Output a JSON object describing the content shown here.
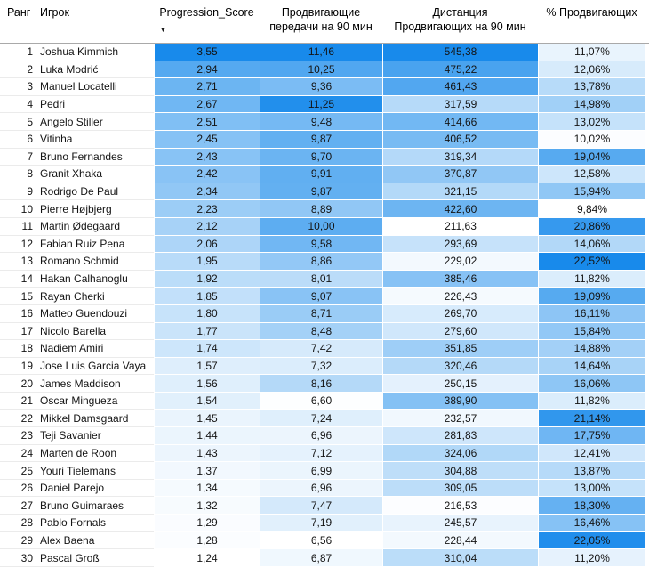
{
  "table": {
    "header": {
      "rank_label": "Ранг",
      "player_label": "Игрок",
      "score_label": "Progression_Score",
      "passes_label_line1": "Продвигающие",
      "passes_label_line2": "передачи на 90 мин",
      "distance_label_line1": "Дистанция",
      "distance_label_line2": "Продвигающих на 90 мин",
      "pct_label": "% Продвигающих",
      "sort_icon": "▼",
      "sorted_column": "Progression_Score",
      "sort_order": "desc"
    },
    "heat_color_min": "#FFFFFF",
    "heat_color_max": "#188AEB",
    "rows": [
      {
        "rank": "1",
        "player": "Joshua Kimmich",
        "score": "3,55",
        "passes": "11,46",
        "distance": "545,38",
        "pct": "11,07%"
      },
      {
        "rank": "2",
        "player": "Luka Modrić",
        "score": "2,94",
        "passes": "10,25",
        "distance": "475,22",
        "pct": "12,06%"
      },
      {
        "rank": "3",
        "player": "Manuel Locatelli",
        "score": "2,71",
        "passes": "9,36",
        "distance": "461,43",
        "pct": "13,78%"
      },
      {
        "rank": "4",
        "player": "Pedri",
        "score": "2,67",
        "passes": "11,25",
        "distance": "317,59",
        "pct": "14,98%"
      },
      {
        "rank": "5",
        "player": "Angelo Stiller",
        "score": "2,51",
        "passes": "9,48",
        "distance": "414,66",
        "pct": "13,02%"
      },
      {
        "rank": "6",
        "player": "Vitinha",
        "score": "2,45",
        "passes": "9,87",
        "distance": "406,52",
        "pct": "10,02%"
      },
      {
        "rank": "7",
        "player": "Bruno Fernandes",
        "score": "2,43",
        "passes": "9,70",
        "distance": "319,34",
        "pct": "19,04%"
      },
      {
        "rank": "8",
        "player": "Granit Xhaka",
        "score": "2,42",
        "passes": "9,91",
        "distance": "370,87",
        "pct": "12,58%"
      },
      {
        "rank": "9",
        "player": "Rodrigo De Paul",
        "score": "2,34",
        "passes": "9,87",
        "distance": "321,15",
        "pct": "15,94%"
      },
      {
        "rank": "10",
        "player": "Pierre Højbjerg",
        "score": "2,23",
        "passes": "8,89",
        "distance": "422,60",
        "pct": "9,84%"
      },
      {
        "rank": "11",
        "player": "Martin Ødegaard",
        "score": "2,12",
        "passes": "10,00",
        "distance": "211,63",
        "pct": "20,86%"
      },
      {
        "rank": "12",
        "player": "Fabian Ruiz Pena",
        "score": "2,06",
        "passes": "9,58",
        "distance": "293,69",
        "pct": "14,06%"
      },
      {
        "rank": "13",
        "player": "Romano Schmid",
        "score": "1,95",
        "passes": "8,86",
        "distance": "229,02",
        "pct": "22,52%"
      },
      {
        "rank": "14",
        "player": "Hakan Calhanoglu",
        "score": "1,92",
        "passes": "8,01",
        "distance": "385,46",
        "pct": "11,82%"
      },
      {
        "rank": "15",
        "player": "Rayan Cherki",
        "score": "1,85",
        "passes": "9,07",
        "distance": "226,43",
        "pct": "19,09%"
      },
      {
        "rank": "16",
        "player": "Matteo Guendouzi",
        "score": "1,80",
        "passes": "8,71",
        "distance": "269,70",
        "pct": "16,11%"
      },
      {
        "rank": "17",
        "player": "Nicolo Barella",
        "score": "1,77",
        "passes": "8,48",
        "distance": "279,60",
        "pct": "15,84%"
      },
      {
        "rank": "18",
        "player": "Nadiem Amiri",
        "score": "1,74",
        "passes": "7,42",
        "distance": "351,85",
        "pct": "14,88%"
      },
      {
        "rank": "19",
        "player": "Jose Luis Garcia Vaya",
        "score": "1,57",
        "passes": "7,32",
        "distance": "320,46",
        "pct": "14,64%"
      },
      {
        "rank": "20",
        "player": "James Maddison",
        "score": "1,56",
        "passes": "8,16",
        "distance": "250,15",
        "pct": "16,06%"
      },
      {
        "rank": "21",
        "player": "Oscar Mingueza",
        "score": "1,54",
        "passes": "6,60",
        "distance": "389,90",
        "pct": "11,82%"
      },
      {
        "rank": "22",
        "player": "Mikkel Damsgaard",
        "score": "1,45",
        "passes": "7,24",
        "distance": "232,57",
        "pct": "21,14%"
      },
      {
        "rank": "23",
        "player": "Teji Savanier",
        "score": "1,44",
        "passes": "6,96",
        "distance": "281,83",
        "pct": "17,75%"
      },
      {
        "rank": "24",
        "player": "Marten de Roon",
        "score": "1,43",
        "passes": "7,12",
        "distance": "324,06",
        "pct": "12,41%"
      },
      {
        "rank": "25",
        "player": "Youri Tielemans",
        "score": "1,37",
        "passes": "6,99",
        "distance": "304,88",
        "pct": "13,87%"
      },
      {
        "rank": "26",
        "player": "Daniel Parejo",
        "score": "1,34",
        "passes": "6,96",
        "distance": "309,05",
        "pct": "13,00%"
      },
      {
        "rank": "27",
        "player": "Bruno Guimaraes",
        "score": "1,32",
        "passes": "7,47",
        "distance": "216,53",
        "pct": "18,30%"
      },
      {
        "rank": "28",
        "player": "Pablo Fornals",
        "score": "1,29",
        "passes": "7,19",
        "distance": "245,57",
        "pct": "16,46%"
      },
      {
        "rank": "29",
        "player": "Alex Baena",
        "score": "1,28",
        "passes": "6,56",
        "distance": "228,44",
        "pct": "22,05%"
      },
      {
        "rank": "30",
        "player": "Pascal Groß",
        "score": "1,24",
        "passes": "6,87",
        "distance": "310,04",
        "pct": "11,20%"
      }
    ]
  },
  "chart_data": {
    "type": "table",
    "title": "",
    "columns": [
      "Ранг",
      "Игрок",
      "Progression_Score",
      "Продвигающие передачи на 90 мин",
      "Дистанция Продвигающих на 90 мин",
      "% Продвигающих"
    ],
    "sorted_by": "Progression_Score",
    "sort_order": "desc",
    "conditional_formatting": "per-column white-to-blue heat scale, black text",
    "rows": [
      [
        1,
        "Joshua Kimmich",
        3.55,
        11.46,
        545.38,
        11.07
      ],
      [
        2,
        "Luka Modrić",
        2.94,
        10.25,
        475.22,
        12.06
      ],
      [
        3,
        "Manuel Locatelli",
        2.71,
        9.36,
        461.43,
        13.78
      ],
      [
        4,
        "Pedri",
        2.67,
        11.25,
        317.59,
        14.98
      ],
      [
        5,
        "Angelo Stiller",
        2.51,
        9.48,
        414.66,
        13.02
      ],
      [
        6,
        "Vitinha",
        2.45,
        9.87,
        406.52,
        10.02
      ],
      [
        7,
        "Bruno Fernandes",
        2.43,
        9.7,
        319.34,
        19.04
      ],
      [
        8,
        "Granit Xhaka",
        2.42,
        9.91,
        370.87,
        12.58
      ],
      [
        9,
        "Rodrigo De Paul",
        2.34,
        9.87,
        321.15,
        15.94
      ],
      [
        10,
        "Pierre Højbjerg",
        2.23,
        8.89,
        422.6,
        9.84
      ],
      [
        11,
        "Martin Ødegaard",
        2.12,
        10.0,
        211.63,
        20.86
      ],
      [
        12,
        "Fabian Ruiz Pena",
        2.06,
        9.58,
        293.69,
        14.06
      ],
      [
        13,
        "Romano Schmid",
        1.95,
        8.86,
        229.02,
        22.52
      ],
      [
        14,
        "Hakan Calhanoglu",
        1.92,
        8.01,
        385.46,
        11.82
      ],
      [
        15,
        "Rayan Cherki",
        1.85,
        9.07,
        226.43,
        19.09
      ],
      [
        16,
        "Matteo Guendouzi",
        1.8,
        8.71,
        269.7,
        16.11
      ],
      [
        17,
        "Nicolo Barella",
        1.77,
        8.48,
        279.6,
        15.84
      ],
      [
        18,
        "Nadiem Amiri",
        1.74,
        7.42,
        351.85,
        14.88
      ],
      [
        19,
        "Jose Luis Garcia Vaya",
        1.57,
        7.32,
        320.46,
        14.64
      ],
      [
        20,
        "James Maddison",
        1.56,
        8.16,
        250.15,
        16.06
      ],
      [
        21,
        "Oscar Mingueza",
        1.54,
        6.6,
        389.9,
        11.82
      ],
      [
        22,
        "Mikkel Damsgaard",
        1.45,
        7.24,
        232.57,
        21.14
      ],
      [
        23,
        "Teji Savanier",
        1.44,
        6.96,
        281.83,
        17.75
      ],
      [
        24,
        "Marten de Roon",
        1.43,
        7.12,
        324.06,
        12.41
      ],
      [
        25,
        "Youri Tielemans",
        1.37,
        6.99,
        304.88,
        13.87
      ],
      [
        26,
        "Daniel Parejo",
        1.34,
        6.96,
        309.05,
        13.0
      ],
      [
        27,
        "Bruno Guimaraes",
        1.32,
        7.47,
        216.53,
        18.3
      ],
      [
        28,
        "Pablo Fornals",
        1.29,
        7.19,
        245.57,
        16.46
      ],
      [
        29,
        "Alex Baena",
        1.28,
        6.56,
        228.44,
        22.05
      ],
      [
        30,
        "Pascal Groß",
        1.24,
        6.87,
        310.04,
        11.2
      ]
    ]
  }
}
